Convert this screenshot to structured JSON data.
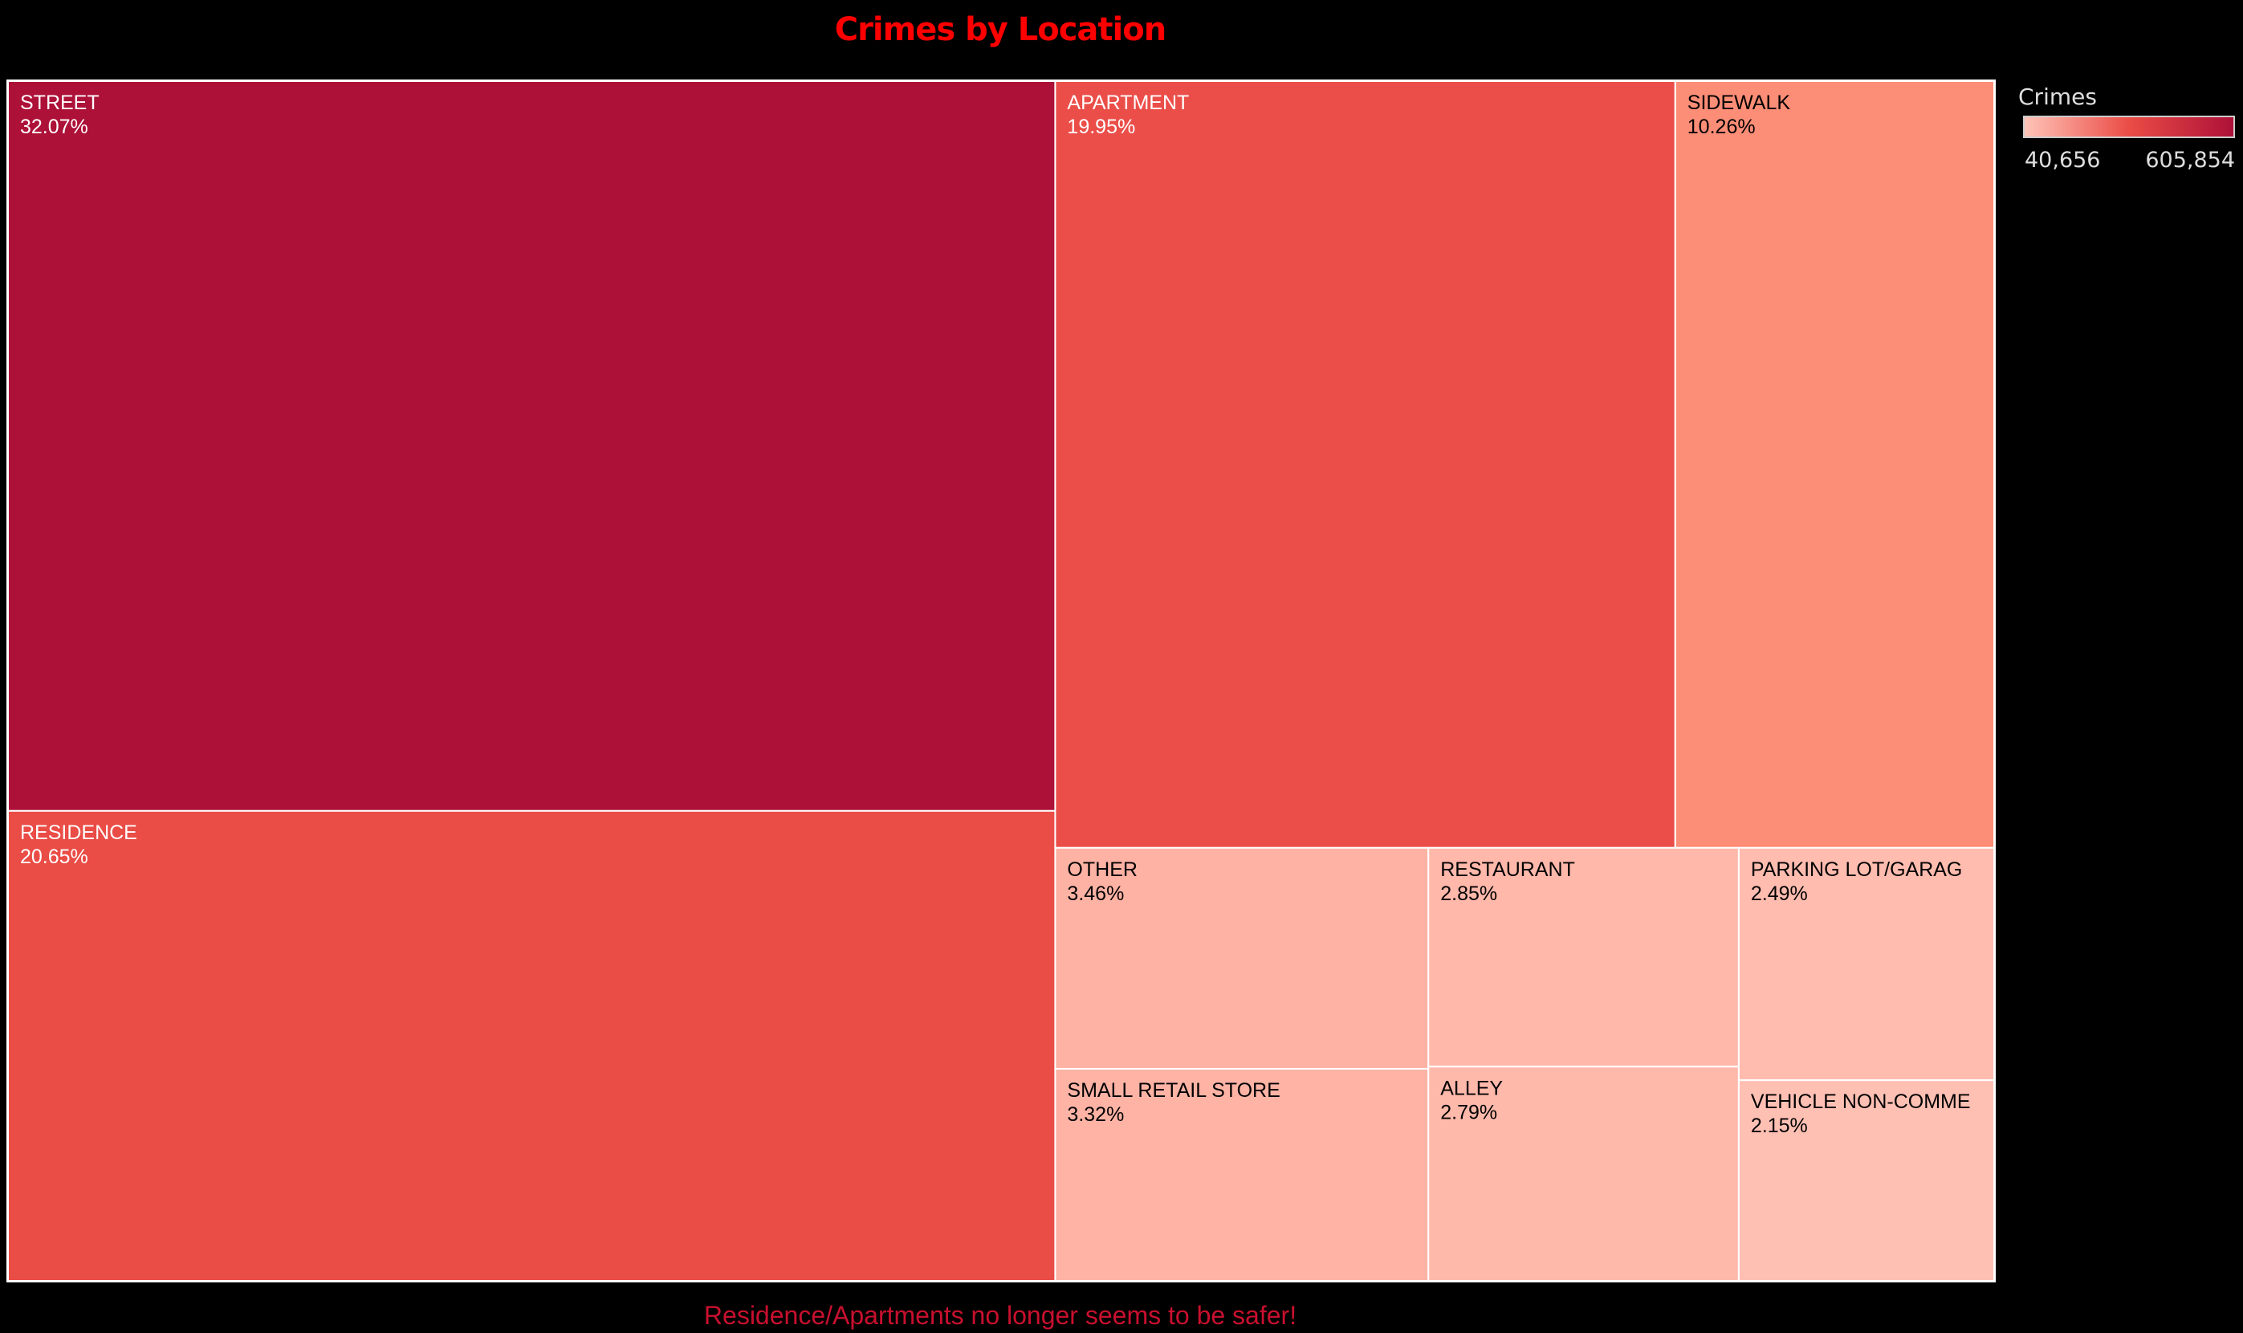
{
  "chart_data": {
    "type": "treemap",
    "title": "Crimes by Location",
    "caption": "Residence/Apartments no longer seems to be safer!",
    "color_legend": {
      "title": "Crimes",
      "min_label": "40,656",
      "max_label": "605,854",
      "min_value": 40656,
      "max_value": 605854,
      "low_color": "#ffc4b8",
      "mid_color": "#ea4c46",
      "high_color": "#ad1138"
    },
    "items": [
      {
        "label": "STREET",
        "share_label": "32.07%",
        "share": 32.07,
        "color": "#ad1138",
        "text_color": "#ffffff"
      },
      {
        "label": "RESIDENCE",
        "share_label": "20.65%",
        "share": 20.65,
        "color": "#ea4c46",
        "text_color": "#ffffff"
      },
      {
        "label": "APARTMENT",
        "share_label": "19.95%",
        "share": 19.95,
        "color": "#eb4e49",
        "text_color": "#ffffff"
      },
      {
        "label": "SIDEWALK",
        "share_label": "10.26%",
        "share": 10.26,
        "color": "#fc8d76",
        "text_color": "#000000"
      },
      {
        "label": "OTHER",
        "share_label": "3.46%",
        "share": 3.46,
        "color": "#feb2a4",
        "text_color": "#000000"
      },
      {
        "label": "SMALL RETAIL STORE",
        "share_label": "3.32%",
        "share": 3.32,
        "color": "#feb3a5",
        "text_color": "#000000"
      },
      {
        "label": "RESTAURANT",
        "share_label": "2.85%",
        "share": 2.85,
        "color": "#ffb8aa",
        "text_color": "#000000"
      },
      {
        "label": "ALLEY",
        "share_label": "2.79%",
        "share": 2.79,
        "color": "#ffb9ab",
        "text_color": "#000000"
      },
      {
        "label": "PARKING LOT/GARAG",
        "share_label": "2.49%",
        "share": 2.49,
        "color": "#ffbcaf",
        "text_color": "#000000"
      },
      {
        "label": "VEHICLE NON-COMME",
        "share_label": "2.15%",
        "share": 2.15,
        "color": "#ffc0b4",
        "text_color": "#000000"
      }
    ]
  }
}
